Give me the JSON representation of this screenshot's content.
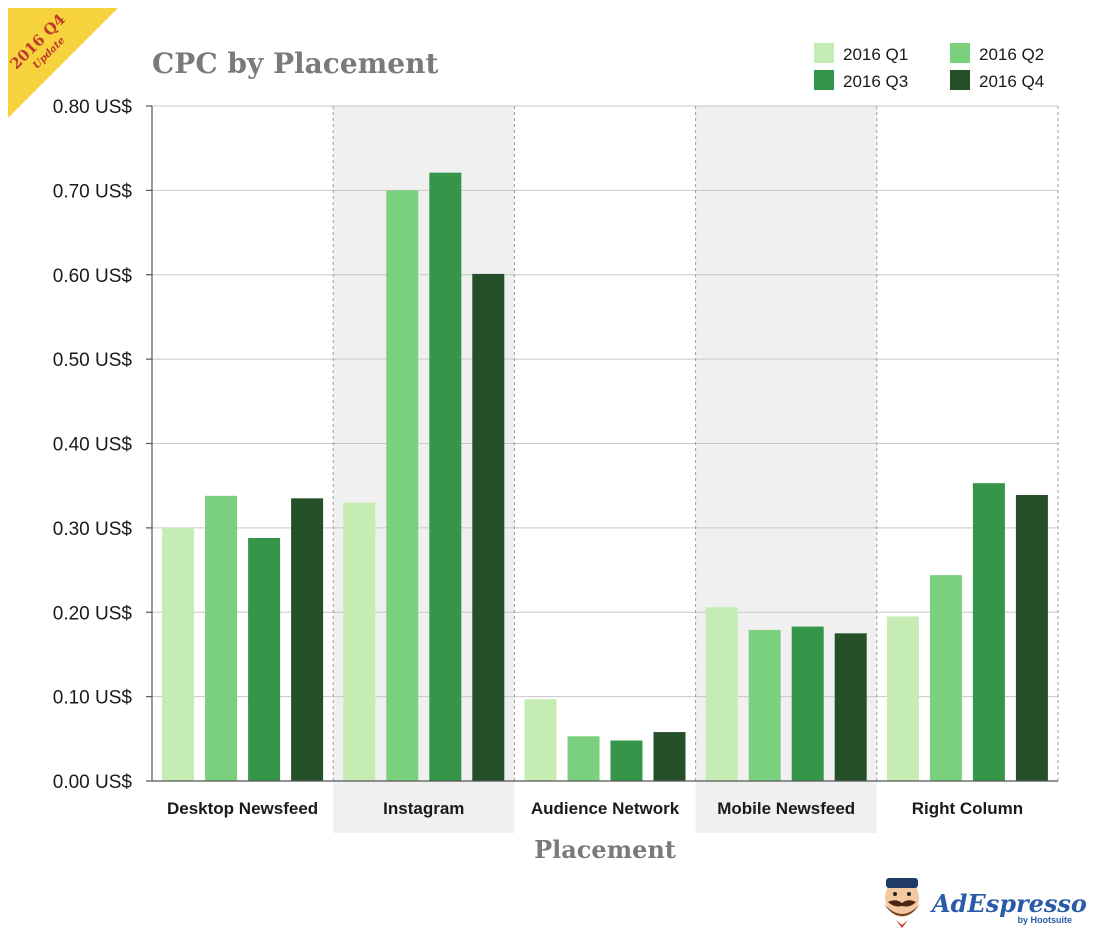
{
  "badge": {
    "year_text": "2016 Q4",
    "sub_text": "Update",
    "color": "#f6d33c",
    "text_color": "#c0392b"
  },
  "brand": {
    "name": "AdEspresso",
    "by": "by Hootsuite",
    "color": "#2a5ba8"
  },
  "colors": {
    "series": [
      "#c5ecb3",
      "#7ad07c",
      "#35964a",
      "#254f28"
    ],
    "band": "#f0f0f0",
    "grid": "#c8c8c8",
    "text": "#1a1a1a",
    "title": "#7a7a7a"
  },
  "chart_data": {
    "type": "bar",
    "title": "CPC by Placement",
    "xlabel": "Placement",
    "ylabel": "",
    "ylim": [
      0,
      0.8
    ],
    "yticks": [
      0,
      0.1,
      0.2,
      0.3,
      0.4,
      0.5,
      0.6,
      0.7,
      0.8
    ],
    "ytick_labels": [
      "0.00 US$",
      "0.10 US$",
      "0.20 US$",
      "0.30 US$",
      "0.40 US$",
      "0.50 US$",
      "0.60 US$",
      "0.70 US$",
      "0.80 US$"
    ],
    "categories": [
      "Desktop Newsfeed",
      "Instagram",
      "Audience Network",
      "Mobile Newsfeed",
      "Right Column"
    ],
    "shaded_categories": [
      1,
      3
    ],
    "legend_position": "top-right",
    "series": [
      {
        "name": "2016 Q1",
        "values": [
          0.3,
          0.33,
          0.097,
          0.206,
          0.195
        ]
      },
      {
        "name": "2016 Q2",
        "values": [
          0.338,
          0.7,
          0.053,
          0.179,
          0.244
        ]
      },
      {
        "name": "2016 Q3",
        "values": [
          0.288,
          0.721,
          0.048,
          0.183,
          0.353
        ]
      },
      {
        "name": "2016 Q4",
        "values": [
          0.335,
          0.601,
          0.058,
          0.175,
          0.339
        ]
      }
    ]
  }
}
